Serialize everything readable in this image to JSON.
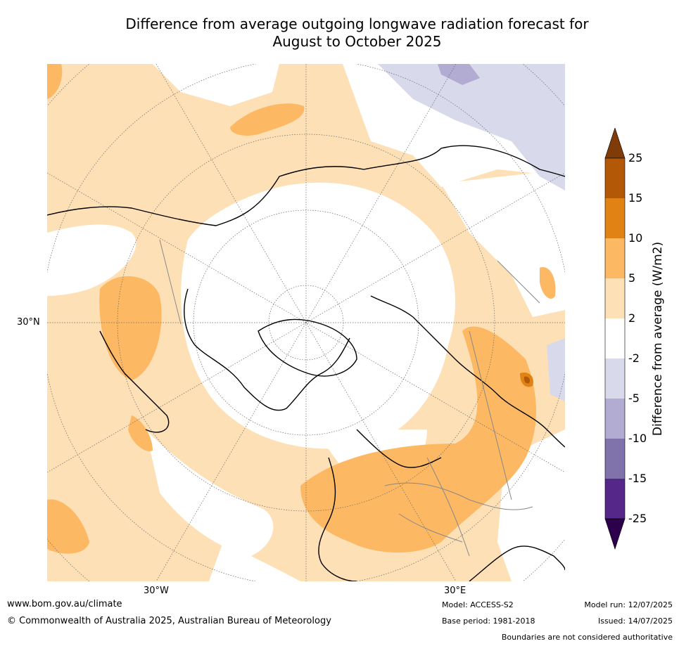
{
  "title_line1": "Difference from average outgoing longwave radiation forecast for",
  "title_line2": "August to October 2025",
  "map": {
    "lat_label": "30°N",
    "lon_labels": [
      "30°W",
      "30°E"
    ]
  },
  "colorbar": {
    "title": "Difference from average (W/m2)",
    "ticks": [
      "25",
      "15",
      "10",
      "5",
      "2",
      "-2",
      "-5",
      "-10",
      "-15",
      "-25"
    ],
    "colors": {
      "gt25": "#7f3b08",
      "15_25": "#b35806",
      "10_15": "#e08214",
      "5_10": "#fdb863",
      "2_5": "#fee0b6",
      "neutral": "#ffffff",
      "m5_m2": "#d8daeb",
      "m10_m5": "#b2abd2",
      "m15_m10": "#8073ac",
      "m25_m15": "#542788",
      "lt_m25": "#2d004b"
    }
  },
  "footer": {
    "url": "www.bom.gov.au/climate",
    "copyright": "© Commonwealth of Australia 2025, Australian Bureau of Meteorology",
    "model": "Model: ACCESS-S2",
    "base_period": "Base period: 1981-2018",
    "model_run": "Model run: 12/07/2025",
    "issued": "Issued: 14/07/2025",
    "disclaimer": "Boundaries are not considered authoritative"
  }
}
